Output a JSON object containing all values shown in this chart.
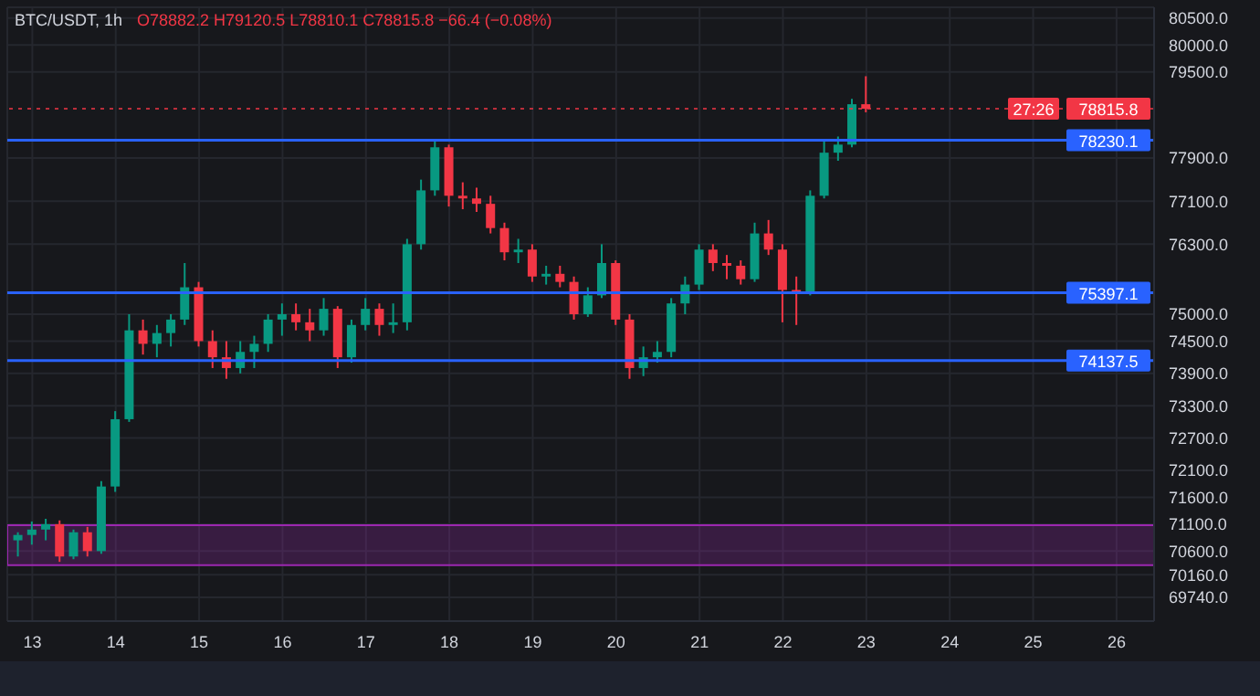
{
  "chart_data": {
    "type": "candlestick",
    "title": "BTC/USDT, 1h",
    "subtitle": "O78882.2 H79120.5 L78810.1 C78815.8 −66.4 (−0.08%)",
    "x": [
      12.833,
      13,
      13.167,
      13.333,
      13.5,
      13.667,
      13.833,
      14,
      14.167,
      14.333,
      14.5,
      14.667,
      14.833,
      15,
      15.167,
      15.333,
      15.5,
      15.667,
      15.833,
      16,
      16.167,
      16.333,
      16.5,
      16.667,
      16.833,
      17,
      17.167,
      17.333,
      17.5,
      17.667,
      17.833,
      18,
      18.167,
      18.333,
      18.5,
      18.667,
      18.833,
      19,
      19.167,
      19.333,
      19.5,
      19.667,
      19.833,
      20,
      20.167,
      20.333,
      20.5,
      20.667,
      20.833,
      21,
      21.167,
      21.333,
      21.5,
      21.667,
      21.833,
      22,
      22.167,
      22.333,
      22.5,
      22.667,
      22.833,
      23
    ],
    "ohlc": [
      [
        70800,
        70950,
        70500,
        70900
      ],
      [
        70900,
        71150,
        70720,
        71000
      ],
      [
        71000,
        71200,
        70800,
        71100
      ],
      [
        71100,
        71170,
        70400,
        70500
      ],
      [
        70500,
        71000,
        70450,
        70950
      ],
      [
        70950,
        71050,
        70500,
        70600
      ],
      [
        70600,
        71900,
        70550,
        71800
      ],
      [
        71800,
        73200,
        71700,
        73050
      ],
      [
        73050,
        75000,
        73000,
        74700
      ],
      [
        74700,
        74900,
        74250,
        74450
      ],
      [
        74450,
        74800,
        74200,
        74650
      ],
      [
        74650,
        75000,
        74400,
        74900
      ],
      [
        74900,
        75950,
        74800,
        75500
      ],
      [
        75500,
        75600,
        74400,
        74500
      ],
      [
        74500,
        74700,
        74000,
        74200
      ],
      [
        74200,
        74500,
        73800,
        74000
      ],
      [
        74000,
        74500,
        73900,
        74300
      ],
      [
        74300,
        74600,
        74000,
        74450
      ],
      [
        74450,
        75000,
        74300,
        74900
      ],
      [
        74900,
        75200,
        74600,
        75000
      ],
      [
        75000,
        75200,
        74700,
        74850
      ],
      [
        74850,
        75100,
        74500,
        74700
      ],
      [
        74700,
        75300,
        74600,
        75100
      ],
      [
        75100,
        75150,
        74000,
        74200
      ],
      [
        74200,
        74900,
        74100,
        74800
      ],
      [
        74800,
        75300,
        74700,
        75100
      ],
      [
        75100,
        75200,
        74600,
        74800
      ],
      [
        74800,
        75200,
        74650,
        74850
      ],
      [
        74850,
        76400,
        74700,
        76300
      ],
      [
        76300,
        77500,
        76200,
        77300
      ],
      [
        77300,
        78230,
        77200,
        78100
      ],
      [
        78100,
        78150,
        77000,
        77200
      ],
      [
        77200,
        77450,
        76950,
        77150
      ],
      [
        77150,
        77350,
        76900,
        77050
      ],
      [
        77050,
        77200,
        76500,
        76600
      ],
      [
        76600,
        76700,
        76000,
        76150
      ],
      [
        76150,
        76400,
        75950,
        76200
      ],
      [
        76200,
        76300,
        75600,
        75700
      ],
      [
        75700,
        75900,
        75550,
        75750
      ],
      [
        75750,
        75900,
        75500,
        75600
      ],
      [
        75600,
        75700,
        74900,
        75000
      ],
      [
        75000,
        75500,
        74950,
        75350
      ],
      [
        75350,
        76300,
        75300,
        75950
      ],
      [
        75950,
        76000,
        74800,
        74900
      ],
      [
        74900,
        75000,
        73800,
        74000
      ],
      [
        74000,
        74400,
        73850,
        74200
      ],
      [
        74200,
        74500,
        74100,
        74300
      ],
      [
        74300,
        75300,
        74200,
        75200
      ],
      [
        75200,
        75700,
        75000,
        75550
      ],
      [
        75550,
        76300,
        75450,
        76200
      ],
      [
        76200,
        76300,
        75800,
        75950
      ],
      [
        75950,
        76100,
        75650,
        75900
      ],
      [
        75900,
        76000,
        75550,
        75650
      ],
      [
        75650,
        76700,
        75600,
        76500
      ],
      [
        76500,
        76750,
        76100,
        76200
      ],
      [
        76200,
        76300,
        74850,
        75450
      ],
      [
        75450,
        75700,
        74800,
        75400
      ],
      [
        75400,
        77300,
        75350,
        77200
      ],
      [
        77200,
        78250,
        77150,
        78000
      ],
      [
        78000,
        78300,
        77850,
        78150
      ],
      [
        78150,
        79000,
        78100,
        78900
      ],
      [
        78900,
        79420,
        78750,
        78815.8
      ]
    ],
    "colors": [
      "#089981",
      "#089981",
      "#089981",
      "#f23645",
      "#089981",
      "#f23645",
      "#089981",
      "#089981",
      "#089981",
      "#f23645",
      "#089981",
      "#089981",
      "#089981",
      "#f23645",
      "#f23645",
      "#f23645",
      "#089981",
      "#089981",
      "#089981",
      "#089981",
      "#f23645",
      "#f23645",
      "#089981",
      "#f23645",
      "#089981",
      "#089981",
      "#f23645",
      "#089981",
      "#089981",
      "#089981",
      "#089981",
      "#f23645",
      "#f23645",
      "#f23645",
      "#f23645",
      "#f23645",
      "#089981",
      "#f23645",
      "#089981",
      "#f23645",
      "#f23645",
      "#089981",
      "#089981",
      "#f23645",
      "#f23645",
      "#089981",
      "#089981",
      "#089981",
      "#089981",
      "#089981",
      "#f23645",
      "#f23645",
      "#f23645",
      "#089981",
      "#f23645",
      "#f23645",
      "#f23645",
      "#089981",
      "#089981",
      "#089981",
      "#089981",
      "#f23645"
    ],
    "xlim": [
      12.7,
      26.45
    ],
    "xticks": [
      13,
      14,
      15,
      16,
      17,
      18,
      19,
      20,
      21,
      22,
      23,
      24,
      25,
      26
    ],
    "ylim": [
      69300,
      80700
    ],
    "yticks": [
      {
        "value": 80500,
        "label": "80500.0"
      },
      {
        "value": 80000,
        "label": "80000.0"
      },
      {
        "value": 79500,
        "label": "79500.0"
      },
      {
        "value": 77900,
        "label": "77900.0"
      },
      {
        "value": 77100,
        "label": "77100.0"
      },
      {
        "value": 76300,
        "label": "76300.0"
      },
      {
        "value": 75000,
        "label": "75000.0"
      },
      {
        "value": 74500,
        "label": "74500.0"
      },
      {
        "value": 73900,
        "label": "73900.0"
      },
      {
        "value": 73300,
        "label": "73300.0"
      },
      {
        "value": 72700,
        "label": "72700.0"
      },
      {
        "value": 72100,
        "label": "72100.0"
      },
      {
        "value": 71600,
        "label": "71600.0"
      },
      {
        "value": 71100,
        "label": "71100.0"
      },
      {
        "value": 70600,
        "label": "70600.0"
      },
      {
        "value": 70160,
        "label": "70160.0"
      },
      {
        "value": 69740,
        "label": "69740.0"
      }
    ],
    "grid": true,
    "ref_lines": [
      {
        "axis": "y",
        "value": 78815.8,
        "label": "78815.8",
        "color": "#f23645",
        "line_style": "dotted"
      },
      {
        "axis": "y",
        "value": 78230.1,
        "label": "78230.1",
        "color": "#2962ff",
        "line_style": "solid"
      },
      {
        "axis": "y",
        "value": 75397.1,
        "label": "75397.1",
        "color": "#2962ff",
        "line_style": "solid"
      },
      {
        "axis": "y",
        "value": 74137.5,
        "label": "74137.5",
        "color": "#2962ff",
        "line_style": "solid"
      }
    ],
    "bands": [
      {
        "axis": "y",
        "from": 70340,
        "to": 71080,
        "color": "#9c27b0"
      }
    ],
    "annotations": [
      {
        "text": "27:26",
        "y": 78815.8
      }
    ]
  }
}
